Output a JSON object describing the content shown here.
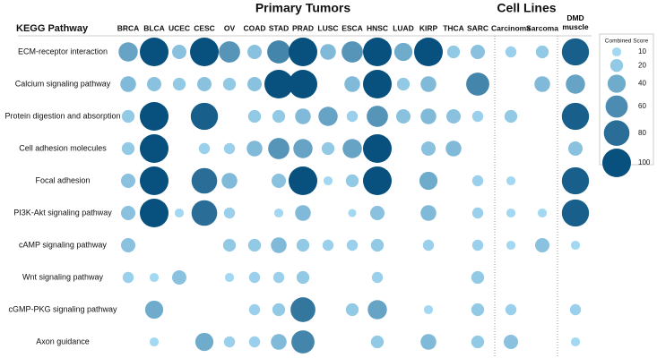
{
  "chart_data": {
    "type": "bubble-matrix",
    "row_header": "KEGG Pathway",
    "groups": [
      {
        "name": "Primary Tumors",
        "columns": [
          "BRCA",
          "BLCA",
          "UCEC",
          "CESC",
          "OV",
          "COAD",
          "STAD",
          "PRAD",
          "LUSC",
          "ESCA",
          "HNSC",
          "LUAD",
          "KIRP",
          "THCA",
          "SARC"
        ]
      },
      {
        "name": "Cell Lines",
        "columns": [
          "Carcinoma",
          "Sarcoma"
        ]
      },
      {
        "columns": [
          "DMD muscle"
        ]
      }
    ],
    "rows": [
      "ECM-receptor interaction",
      "Calcium signaling pathway",
      "Protein digestion and absorption",
      "Cell adhesion molecules",
      "Focal adhesion",
      "PI3K-Akt signaling pathway",
      "cAMP signaling pathway",
      "Wnt signaling pathway",
      "cGMP-PKG signaling pathway",
      "Axon guidance"
    ],
    "values": [
      [
        45,
        100,
        25,
        100,
        55,
        25,
        65,
        100,
        30,
        55,
        100,
        40,
        100,
        20,
        25,
        15,
        20,
        90
      ],
      [
        30,
        25,
        20,
        25,
        20,
        25,
        100,
        100,
        null,
        30,
        100,
        20,
        30,
        null,
        65,
        null,
        30,
        45
      ],
      [
        20,
        100,
        null,
        90,
        null,
        20,
        20,
        30,
        45,
        15,
        55,
        25,
        30,
        25,
        15,
        20,
        null,
        90
      ],
      [
        20,
        100,
        null,
        15,
        15,
        30,
        55,
        45,
        20,
        45,
        100,
        null,
        25,
        30,
        null,
        null,
        null,
        25
      ],
      [
        25,
        100,
        null,
        80,
        30,
        null,
        25,
        100,
        10,
        20,
        100,
        null,
        40,
        null,
        15,
        10,
        null,
        90
      ],
      [
        25,
        100,
        10,
        80,
        15,
        null,
        10,
        30,
        null,
        8,
        25,
        null,
        30,
        null,
        15,
        10,
        10,
        90
      ],
      [
        25,
        null,
        null,
        null,
        20,
        20,
        30,
        20,
        15,
        15,
        20,
        null,
        15,
        null,
        15,
        10,
        25,
        10
      ],
      [
        15,
        10,
        25,
        null,
        10,
        15,
        15,
        20,
        null,
        null,
        15,
        null,
        null,
        null,
        20,
        null,
        null,
        null
      ],
      [
        null,
        40,
        null,
        null,
        null,
        15,
        20,
        75,
        null,
        20,
        45,
        null,
        10,
        null,
        20,
        15,
        null,
        15
      ],
      [
        null,
        10,
        null,
        40,
        15,
        15,
        30,
        65,
        null,
        null,
        20,
        null,
        30,
        null,
        20,
        25,
        null,
        10
      ]
    ],
    "color_low": "#a3d8f2",
    "color_high": "#08507e",
    "size_legend": {
      "title": "Combined Score",
      "values": [
        10,
        20,
        40,
        60,
        80,
        100
      ]
    }
  }
}
